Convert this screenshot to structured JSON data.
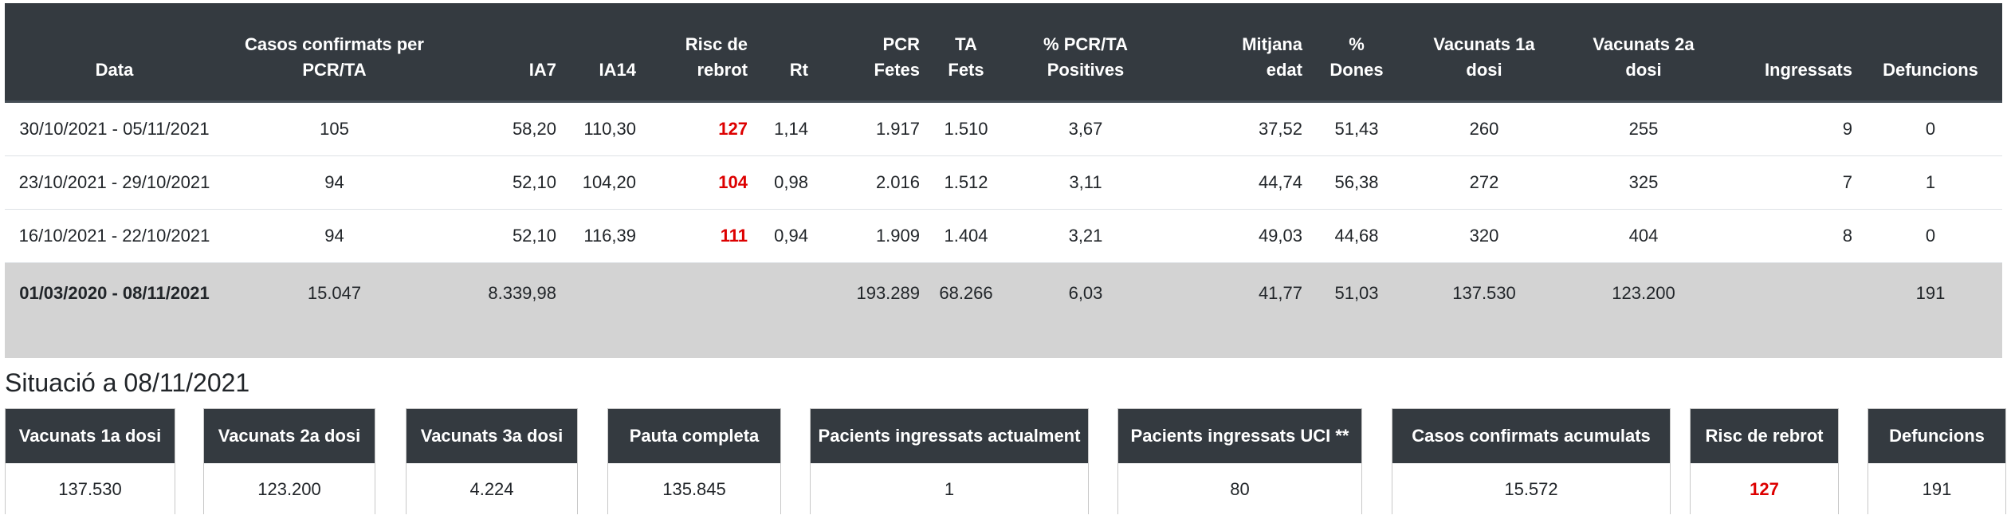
{
  "table": {
    "headers": [
      [
        "Data",
        ""
      ],
      [
        "Casos confirmats per",
        "PCR/TA"
      ],
      [
        "IA7",
        ""
      ],
      [
        "IA14",
        ""
      ],
      [
        "Risc de",
        "rebrot"
      ],
      [
        "Rt",
        ""
      ],
      [
        "PCR",
        "Fetes"
      ],
      [
        "TA",
        "Fets"
      ],
      [
        "% PCR/TA",
        "Positives"
      ],
      [
        "Mitjana",
        "edat"
      ],
      [
        "%",
        "Dones"
      ],
      [
        "Vacunats 1a",
        "dosi"
      ],
      [
        "Vacunats 2a",
        "dosi"
      ],
      [
        "Ingressats",
        ""
      ],
      [
        "Defuncions",
        ""
      ]
    ],
    "rows": [
      [
        "30/10/2021 - 05/11/2021",
        "105",
        "58,20",
        "110,30",
        "127",
        "1,14",
        "1.917",
        "1.510",
        "3,67",
        "37,52",
        "51,43",
        "260",
        "255",
        "9",
        "0"
      ],
      [
        "23/10/2021 - 29/10/2021",
        "94",
        "52,10",
        "104,20",
        "104",
        "0,98",
        "2.016",
        "1.512",
        "3,11",
        "44,74",
        "56,38",
        "272",
        "325",
        "7",
        "1"
      ],
      [
        "16/10/2021 - 22/10/2021",
        "94",
        "52,10",
        "116,39",
        "111",
        "0,94",
        "1.909",
        "1.404",
        "3,21",
        "49,03",
        "44,68",
        "320",
        "404",
        "8",
        "0"
      ]
    ],
    "total": [
      "01/03/2020 - 08/11/2021",
      "15.047",
      "8.339,98",
      "",
      "",
      "",
      "193.289",
      "68.266",
      "6,03",
      "41,77",
      "51,03",
      "137.530",
      "123.200",
      "",
      "191"
    ]
  },
  "situation": {
    "title": "Situació a 08/11/2021",
    "cards": [
      {
        "label": "Vacunats 1a dosi",
        "value": "137.530"
      },
      {
        "label": "Vacunats 2a dosi",
        "value": "123.200"
      },
      {
        "label": "Vacunats 3a dosi",
        "value": "4.224"
      },
      {
        "label": "Pauta completa",
        "value": "135.845"
      },
      {
        "label": "Pacients ingressats actualment",
        "value": "1"
      },
      {
        "label": "Pacients ingressats UCI **",
        "value": "80"
      },
      {
        "label": "Casos confirmats acumulats",
        "value": "15.572"
      },
      {
        "label": "Risc de rebrot",
        "value": "127"
      },
      {
        "label": "Defuncions",
        "value": "191"
      }
    ]
  },
  "colors": {
    "header_bg": "#343a40",
    "risk": "#dd0000",
    "total_bg": "#d3d3d3"
  }
}
